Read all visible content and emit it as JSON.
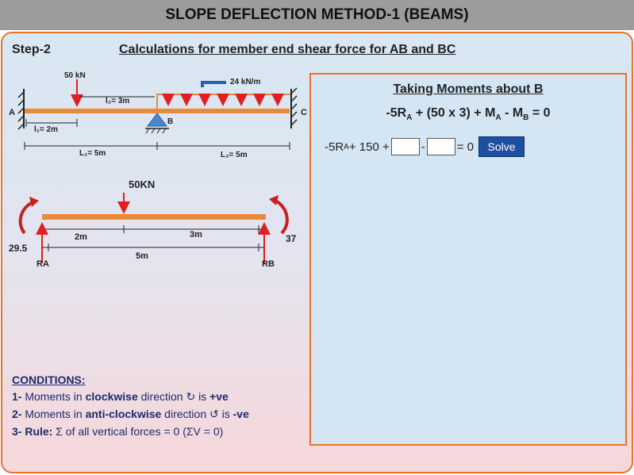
{
  "title": "SLOPE DEFLECTION METHOD-1 (BEAMS)",
  "step": "Step-2",
  "calc_title": "Calculations for member end shear force for AB and BC",
  "diagram": {
    "load_point": "50 kN",
    "load_udl": "24 kN/m",
    "dim_l2_top": "l₂= 3m",
    "dim_l1_bottom": "l₁= 2m",
    "span_L1": "L₁= 5m",
    "span_L2": "L₂= 5m",
    "label_A": "A",
    "label_B": "B",
    "label_C": "C"
  },
  "fbd": {
    "load": "50KN",
    "dim_left": "2m",
    "dim_right": "3m",
    "span": "5m",
    "moment_left": "29.5",
    "moment_right": "37",
    "reaction_left": "RA",
    "reaction_right": "RB"
  },
  "box": {
    "title": "Taking Moments about B",
    "eq": {
      "t1": "-5R",
      "s1": "A",
      "t2": " + (50 x 3) + M",
      "s2": "A",
      "t3": " - M",
      "s3": "B",
      "t4": " = 0"
    },
    "row": {
      "t1": "-5R",
      "s1": "A",
      "t2": " + 150 +",
      "minus": "-",
      "equals": "= 0"
    },
    "input1_value": "",
    "input2_value": "",
    "solve_label": "Solve"
  },
  "conditions": {
    "title": "CONDITIONS:",
    "line1": {
      "num": "1-",
      "a": " Moments in ",
      "b": "clockwise",
      "c": " direction ↻ is ",
      "d": "+ve"
    },
    "line2": {
      "num": "2-",
      "a": " Moments in ",
      "b": "anti-clockwise",
      "c": " direction ↺ is ",
      "d": "-ve"
    },
    "line3": {
      "num": "3- Rule:",
      "a": " Σ of all vertical forces = 0 (ΣV = 0)"
    }
  },
  "colors": {
    "accent": "#e8742a",
    "load_arrow": "#e02020",
    "button": "#1f4fa1",
    "support": "#4a86c8"
  }
}
